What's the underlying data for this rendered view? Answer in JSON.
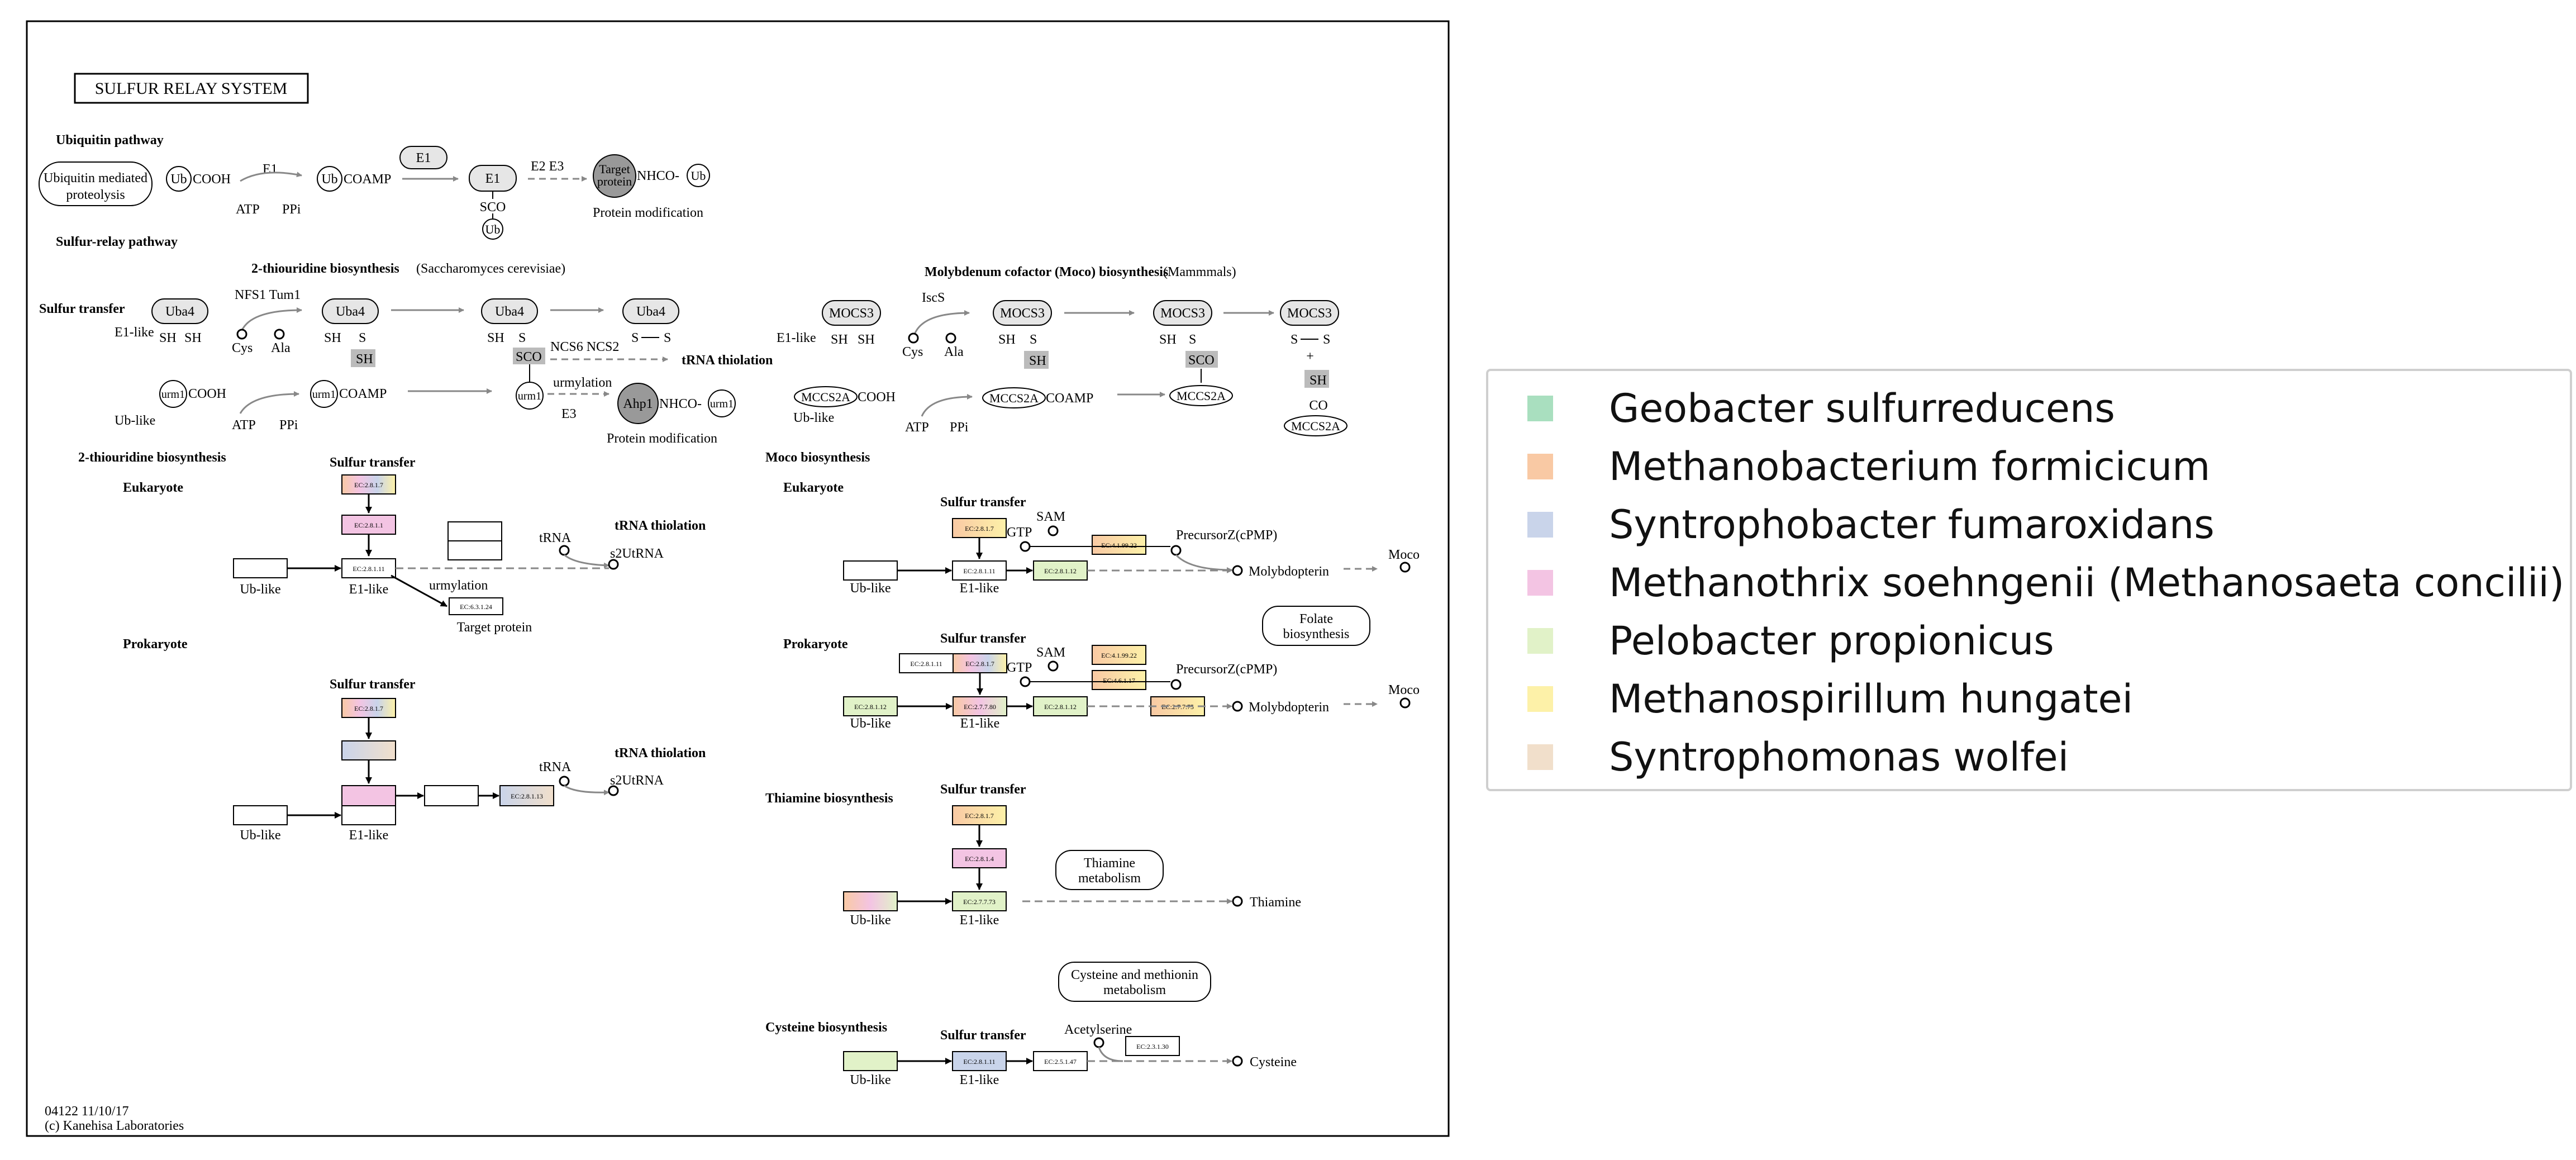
{
  "map": {
    "title": "SULFUR RELAY SYSTEM",
    "footer_id": "04122 11/10/17",
    "footer_copyright": "(c) Kanehisa Laboratories"
  },
  "sections": {
    "ubiquitin_pathway": "Ubiquitin pathway",
    "sulfur_relay_pathway": "Sulfur-relay pathway",
    "sulfur_transfer": "Sulfur transfer",
    "thiouridine_top": "2-thiouridine biosynthesis",
    "thiouridine_top_org": "(Saccharomyces cerevisiae)",
    "moco_top": "Molybdenum cofactor (Moco) biosynthesis",
    "moco_top_org": "(Mammmals)",
    "thiouridine_bottom": "2-thiouridine biosynthesis",
    "moco_bottom": "Moco biosynthesis",
    "eukaryote": "Eukaryote",
    "prokaryote": "Prokaryote",
    "thiamine": "Thiamine biosynthesis",
    "cysteine": "Cysteine biosynthesis",
    "trna_thiolation": "tRNA thiolation"
  },
  "labels": {
    "ubiquitin_mediated": "Ubiquitin mediated",
    "proteolysis": "proteolysis",
    "ub": "Ub",
    "cooh": "COOH",
    "coamp": "COAMP",
    "e1": "E1",
    "e2e3": "E2 E3",
    "atp": "ATP",
    "ppi": "PPi",
    "target": "Target",
    "protein": "protein",
    "nhco": "NHCO-",
    "protein_mod": "Protein modification",
    "sco": "SCO",
    "e1_like": "E1-like",
    "ub_like": "Ub-like",
    "uba4": "Uba4",
    "sh": "SH",
    "s": "S",
    "nfs1_tum1": "NFS1 Tum1",
    "cys": "Cys",
    "ala": "Ala",
    "ncs6_ncs2": "NCS6  NCS2",
    "urm1": "urm1",
    "urmylation": "urmylation",
    "e3": "E3",
    "ahp1": "Ahp1",
    "iscs": "IscS",
    "mocs3": "MOCS3",
    "mocs2a": "MCCS2A",
    "co": "CO",
    "plus": "+",
    "trna": "tRNA",
    "s2utrna": "s2UtRNA",
    "target_protein": "Target protein",
    "sam": "SAM",
    "gtp": "GTP",
    "precursorz": "PrecursorZ(cPMP)",
    "molybdopterin": "Molybdopterin",
    "moco": "Moco",
    "folate1": "Folate",
    "folate2": "biosynthesis",
    "thiamine_met1": "Thiamine",
    "thiamine_met2": "metabolism",
    "thiamine": "Thiamine",
    "cys_met1": "Cysteine and methionin",
    "cys_met2": "metabolism",
    "acetylserine": "Acetylserine",
    "cysteine": "Cysteine"
  },
  "ec": {
    "e2817": "EC:2.8.1.7",
    "e2811": "EC:2.8.1.1",
    "e2811b": "EC:2.8.1.11",
    "e2812": "EC:2.8.1.12",
    "e2813": "EC:2.8.1.13",
    "e2814": "EC:2.8.1.4",
    "e41399": "EC:4.1.99.22",
    "e4617": "EC:4.6.1.17",
    "e27780": "EC:2.7.7.80",
    "e27775": "EC:2.7.7.75",
    "e27773": "EC:2.7.7.73",
    "e25147": "EC:2.5.1.47",
    "e231316": "EC:2.3.1.30",
    "e631124": "EC:6.3.1.24",
    "e2811c": "EC:2.8.1.13"
  },
  "legend": [
    {
      "name": "Geobacter sulfurreducens",
      "color": "#a9dfbf"
    },
    {
      "name": "Methanobacterium formicicum",
      "color": "#f9c9a4"
    },
    {
      "name": "Syntrophobacter fumaroxidans",
      "color": "#c9d4ea"
    },
    {
      "name": "Methanothrix soehngenii (Methanosaeta concilii)",
      "color": "#f3c4e3"
    },
    {
      "name": "Pelobacter propionicus",
      "color": "#e1f2c8"
    },
    {
      "name": "Methanospirillum hungatei",
      "color": "#fdf1a8"
    },
    {
      "name": "Syntrophomonas wolfei",
      "color": "#f1dfcb"
    }
  ]
}
